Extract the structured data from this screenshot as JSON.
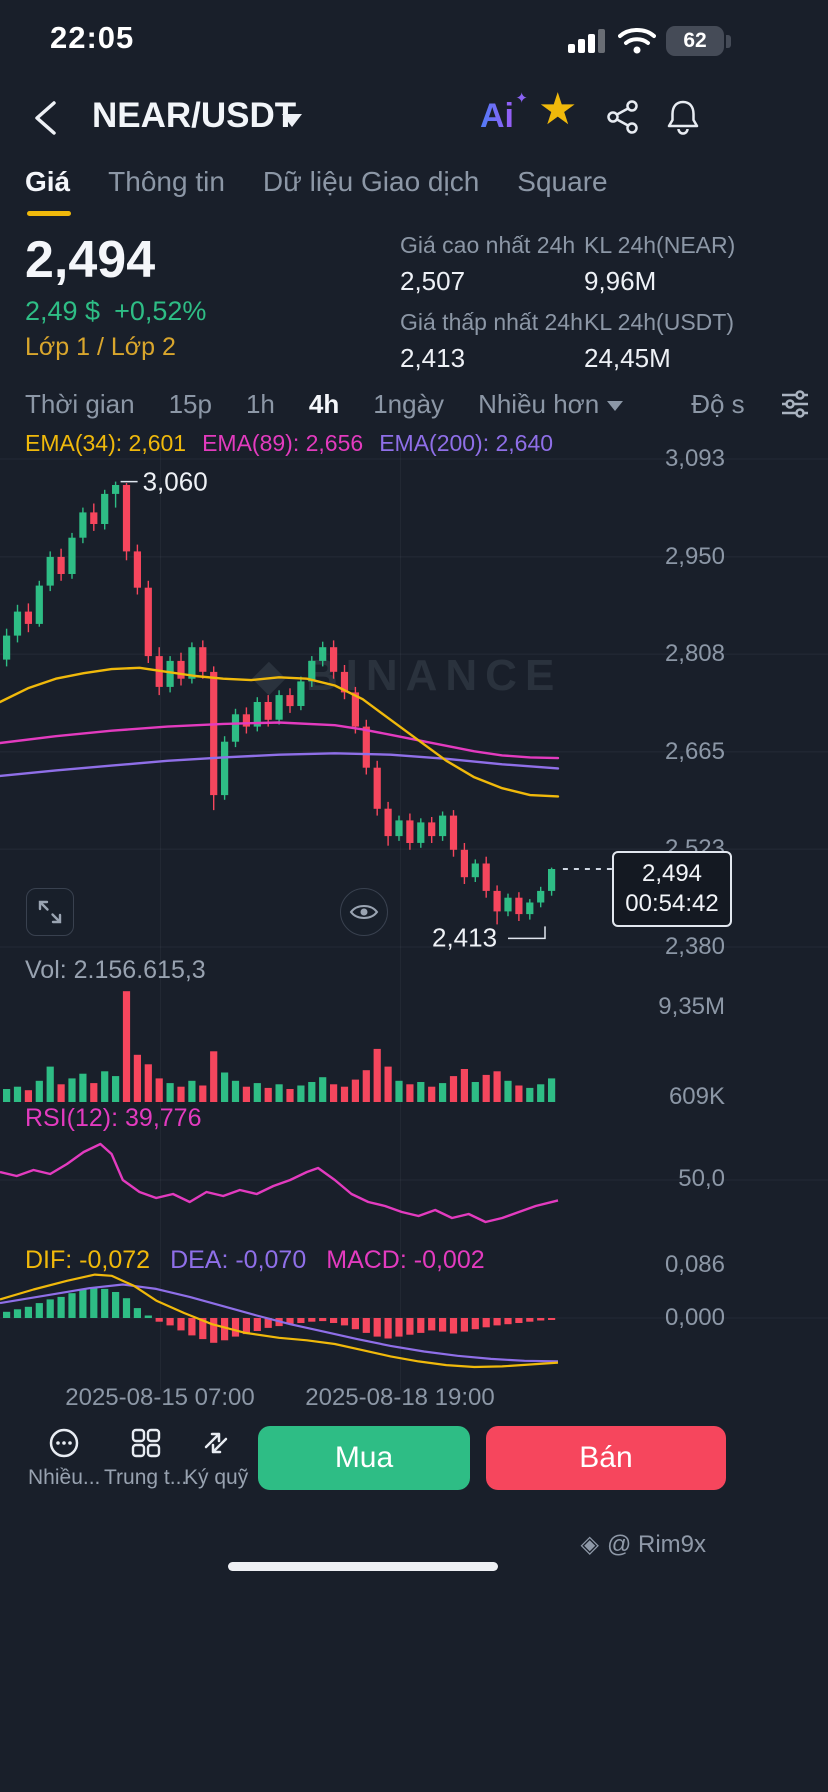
{
  "status_bar": {
    "time": "22:05",
    "battery": "62"
  },
  "header": {
    "title": "NEAR/USDT",
    "ai_label": "Ai"
  },
  "icons": {
    "star": "★",
    "sparkle": "✦",
    "logo": "◈",
    "diamond": "◆"
  },
  "tabs": [
    {
      "label": "Giá",
      "active": true
    },
    {
      "label": "Thông tin",
      "active": false
    },
    {
      "label": "Dữ liệu Giao dịch",
      "active": false
    },
    {
      "label": "Square",
      "active": false
    }
  ],
  "ticker": {
    "price": "2,494",
    "fiat": "2,49 $",
    "change": "+0,52%",
    "layers": "Lớp 1 / Lớp 2",
    "stats": [
      {
        "label": "Giá cao nhất 24h",
        "value": "2,507"
      },
      {
        "label": "KL 24h(NEAR)",
        "value": "9,96M"
      },
      {
        "label": "Giá thấp nhất 24h",
        "value": "2,413"
      },
      {
        "label": "KL 24h(USDT)",
        "value": "24,45M"
      }
    ]
  },
  "timeframe_bar": {
    "items": [
      {
        "label": "Thời gian",
        "active": false
      },
      {
        "label": "15p",
        "active": false
      },
      {
        "label": "1h",
        "active": false
      },
      {
        "label": "4h",
        "active": true
      },
      {
        "label": "1ngày",
        "active": false
      }
    ],
    "more": "Nhiều hơn",
    "depth": "Độ s"
  },
  "legends": {
    "ema34": "EMA(34): 2,601",
    "ema89": "EMA(89): 2,656",
    "ema200": "EMA(200): 2,640",
    "vol": "Vol: 2.156.615,3",
    "rsi": "RSI(12): 39,776",
    "dif": "DIF: -0,072",
    "dea": "DEA: -0,070",
    "macd": "MACD: -0,002"
  },
  "annotations": {
    "high": "3,060",
    "low": "2,413",
    "last_price": "2,494",
    "countdown": "00:54:42",
    "watermark": "BINANCE",
    "credit": "@ Rim9x"
  },
  "axis": {
    "price_labels": [
      "3,093",
      "2,950",
      "2,808",
      "2,665",
      "2,523",
      "2,380"
    ],
    "volume_labels": [
      "9,35M",
      "609K"
    ],
    "rsi_label": "50,0",
    "macd_labels": [
      "0,086",
      "0,000"
    ],
    "time_labels": [
      "2025-08-15 07:00",
      "2025-08-18 19:00"
    ]
  },
  "actions": {
    "more": "Nhiều...",
    "hub": "Trung t...",
    "margin": "Ký quỹ",
    "buy": "Mua",
    "sell": "Bán"
  },
  "colors": {
    "bg": "#191f2a",
    "up": "#2ebd85",
    "down": "#f6465d",
    "yellow": "#f0b90b",
    "magenta": "#e33bbf",
    "purple": "#8f6fe8",
    "grid": "rgba(140,152,170,0.10)",
    "text": "#eaecef",
    "text_dim": "#8c97a6"
  },
  "chart_data": {
    "type": "candlestick",
    "symbol": "NEAR/USDT",
    "interval": "4h",
    "price_axis": {
      "min": 2380,
      "max": 3093,
      "gridlines": [
        3093,
        2950,
        2808,
        2665,
        2523,
        2380
      ]
    },
    "candles": [
      [
        2800,
        2845,
        2790,
        2835
      ],
      [
        2835,
        2880,
        2825,
        2870
      ],
      [
        2870,
        2882,
        2840,
        2852
      ],
      [
        2852,
        2915,
        2848,
        2908
      ],
      [
        2908,
        2958,
        2900,
        2950
      ],
      [
        2950,
        2962,
        2915,
        2925
      ],
      [
        2925,
        2985,
        2918,
        2978
      ],
      [
        2978,
        3022,
        2970,
        3015
      ],
      [
        3015,
        3028,
        2988,
        2998
      ],
      [
        2998,
        3048,
        2990,
        3042
      ],
      [
        3042,
        3060,
        3022,
        3055
      ],
      [
        3055,
        3058,
        2945,
        2958
      ],
      [
        2958,
        2968,
        2895,
        2905
      ],
      [
        2905,
        2915,
        2795,
        2805
      ],
      [
        2805,
        2818,
        2748,
        2760
      ],
      [
        2760,
        2805,
        2752,
        2798
      ],
      [
        2798,
        2810,
        2762,
        2772
      ],
      [
        2772,
        2825,
        2765,
        2818
      ],
      [
        2818,
        2828,
        2772,
        2782
      ],
      [
        2782,
        2790,
        2580,
        2602
      ],
      [
        2602,
        2688,
        2595,
        2680
      ],
      [
        2680,
        2728,
        2672,
        2720
      ],
      [
        2720,
        2730,
        2692,
        2702
      ],
      [
        2702,
        2745,
        2695,
        2738
      ],
      [
        2738,
        2748,
        2702,
        2712
      ],
      [
        2712,
        2755,
        2705,
        2748
      ],
      [
        2748,
        2758,
        2722,
        2732
      ],
      [
        2732,
        2775,
        2726,
        2768
      ],
      [
        2768,
        2805,
        2760,
        2798
      ],
      [
        2798,
        2826,
        2790,
        2818
      ],
      [
        2818,
        2828,
        2772,
        2782
      ],
      [
        2782,
        2792,
        2742,
        2752
      ],
      [
        2752,
        2760,
        2692,
        2702
      ],
      [
        2702,
        2712,
        2632,
        2642
      ],
      [
        2642,
        2652,
        2572,
        2582
      ],
      [
        2582,
        2592,
        2528,
        2542
      ],
      [
        2542,
        2572,
        2535,
        2565
      ],
      [
        2565,
        2575,
        2522,
        2532
      ],
      [
        2532,
        2568,
        2525,
        2562
      ],
      [
        2562,
        2570,
        2532,
        2542
      ],
      [
        2542,
        2578,
        2535,
        2572
      ],
      [
        2572,
        2580,
        2512,
        2522
      ],
      [
        2522,
        2532,
        2472,
        2482
      ],
      [
        2482,
        2508,
        2475,
        2502
      ],
      [
        2502,
        2512,
        2452,
        2462
      ],
      [
        2462,
        2470,
        2413,
        2432
      ],
      [
        2432,
        2458,
        2425,
        2452
      ],
      [
        2452,
        2460,
        2418,
        2428
      ],
      [
        2428,
        2450,
        2420,
        2445
      ],
      [
        2445,
        2468,
        2438,
        2462
      ],
      [
        2462,
        2496,
        2455,
        2494
      ]
    ],
    "volumes": [
      1.1,
      1.3,
      1.0,
      1.8,
      3.0,
      1.5,
      2.0,
      2.4,
      1.6,
      2.6,
      2.2,
      9.4,
      4.0,
      3.2,
      2.0,
      1.6,
      1.3,
      1.8,
      1.4,
      4.3,
      2.5,
      1.8,
      1.3,
      1.6,
      1.2,
      1.5,
      1.1,
      1.4,
      1.7,
      2.1,
      1.5,
      1.3,
      1.9,
      2.7,
      4.5,
      3.0,
      1.8,
      1.5,
      1.7,
      1.3,
      1.6,
      2.2,
      2.8,
      1.7,
      2.3,
      2.6,
      1.8,
      1.4,
      1.2,
      1.5,
      2.0
    ],
    "ema34": [
      [
        0,
        2738
      ],
      [
        0.05,
        2758
      ],
      [
        0.1,
        2772
      ],
      [
        0.15,
        2780
      ],
      [
        0.2,
        2786
      ],
      [
        0.25,
        2788
      ],
      [
        0.3,
        2782
      ],
      [
        0.35,
        2776
      ],
      [
        0.4,
        2772
      ],
      [
        0.45,
        2770
      ],
      [
        0.5,
        2774
      ],
      [
        0.55,
        2772
      ],
      [
        0.6,
        2762
      ],
      [
        0.65,
        2742
      ],
      [
        0.7,
        2712
      ],
      [
        0.75,
        2682
      ],
      [
        0.8,
        2652
      ],
      [
        0.85,
        2628
      ],
      [
        0.9,
        2612
      ],
      [
        0.95,
        2602
      ],
      [
        1,
        2600
      ]
    ],
    "ema89": [
      [
        0,
        2678
      ],
      [
        0.1,
        2688
      ],
      [
        0.2,
        2696
      ],
      [
        0.3,
        2702
      ],
      [
        0.4,
        2706
      ],
      [
        0.5,
        2708
      ],
      [
        0.6,
        2704
      ],
      [
        0.65,
        2698
      ],
      [
        0.7,
        2690
      ],
      [
        0.75,
        2682
      ],
      [
        0.8,
        2674
      ],
      [
        0.85,
        2666
      ],
      [
        0.9,
        2660
      ],
      [
        0.95,
        2657
      ],
      [
        1,
        2656
      ]
    ],
    "ema200": [
      [
        0,
        2630
      ],
      [
        0.1,
        2638
      ],
      [
        0.2,
        2645
      ],
      [
        0.3,
        2652
      ],
      [
        0.4,
        2657
      ],
      [
        0.5,
        2661
      ],
      [
        0.6,
        2663
      ],
      [
        0.7,
        2661
      ],
      [
        0.8,
        2655
      ],
      [
        0.9,
        2647
      ],
      [
        1,
        2641
      ]
    ],
    "rsi": [
      [
        0,
        54
      ],
      [
        0.03,
        52
      ],
      [
        0.06,
        55
      ],
      [
        0.09,
        53
      ],
      [
        0.12,
        58
      ],
      [
        0.15,
        64
      ],
      [
        0.18,
        68
      ],
      [
        0.2,
        63
      ],
      [
        0.22,
        50
      ],
      [
        0.25,
        44
      ],
      [
        0.28,
        41
      ],
      [
        0.31,
        43
      ],
      [
        0.34,
        39
      ],
      [
        0.37,
        44
      ],
      [
        0.4,
        42
      ],
      [
        0.43,
        45
      ],
      [
        0.46,
        43
      ],
      [
        0.49,
        47
      ],
      [
        0.52,
        50
      ],
      [
        0.55,
        54
      ],
      [
        0.57,
        56
      ],
      [
        0.6,
        50
      ],
      [
        0.63,
        43
      ],
      [
        0.66,
        39
      ],
      [
        0.69,
        37
      ],
      [
        0.72,
        34
      ],
      [
        0.75,
        32
      ],
      [
        0.78,
        35
      ],
      [
        0.81,
        31
      ],
      [
        0.84,
        33
      ],
      [
        0.87,
        29
      ],
      [
        0.9,
        31
      ],
      [
        0.93,
        34
      ],
      [
        0.96,
        37
      ],
      [
        1,
        39.8
      ]
    ],
    "macd": {
      "hist": [
        0.01,
        0.014,
        0.018,
        0.024,
        0.03,
        0.034,
        0.04,
        0.046,
        0.05,
        0.047,
        0.042,
        0.032,
        0.016,
        0.004,
        -0.006,
        -0.012,
        -0.02,
        -0.028,
        -0.034,
        -0.04,
        -0.036,
        -0.03,
        -0.026,
        -0.021,
        -0.016,
        -0.013,
        -0.01,
        -0.008,
        -0.006,
        -0.005,
        -0.008,
        -0.012,
        -0.018,
        -0.024,
        -0.03,
        -0.033,
        -0.03,
        -0.027,
        -0.024,
        -0.02,
        -0.022,
        -0.025,
        -0.022,
        -0.018,
        -0.015,
        -0.012,
        -0.01,
        -0.008,
        -0.006,
        -0.004,
        -0.002
      ],
      "dif": [
        [
          0,
          0.03
        ],
        [
          0.06,
          0.046
        ],
        [
          0.12,
          0.06
        ],
        [
          0.17,
          0.07
        ],
        [
          0.2,
          0.068
        ],
        [
          0.24,
          0.052
        ],
        [
          0.28,
          0.028
        ],
        [
          0.33,
          0.008
        ],
        [
          0.38,
          -0.01
        ],
        [
          0.44,
          -0.024
        ],
        [
          0.5,
          -0.032
        ],
        [
          0.55,
          -0.036
        ],
        [
          0.6,
          -0.042
        ],
        [
          0.65,
          -0.052
        ],
        [
          0.7,
          -0.062
        ],
        [
          0.75,
          -0.07
        ],
        [
          0.8,
          -0.076
        ],
        [
          0.85,
          -0.079
        ],
        [
          0.9,
          -0.078
        ],
        [
          0.95,
          -0.075
        ],
        [
          1,
          -0.072
        ]
      ],
      "dea": [
        [
          0,
          0.024
        ],
        [
          0.08,
          0.036
        ],
        [
          0.16,
          0.048
        ],
        [
          0.22,
          0.054
        ],
        [
          0.28,
          0.047
        ],
        [
          0.34,
          0.034
        ],
        [
          0.4,
          0.019
        ],
        [
          0.46,
          0.004
        ],
        [
          0.52,
          -0.01
        ],
        [
          0.58,
          -0.022
        ],
        [
          0.64,
          -0.034
        ],
        [
          0.7,
          -0.045
        ],
        [
          0.76,
          -0.054
        ],
        [
          0.82,
          -0.061
        ],
        [
          0.88,
          -0.066
        ],
        [
          0.94,
          -0.069
        ],
        [
          1,
          -0.07
        ]
      ]
    },
    "markers": {
      "high_index": 10,
      "high_price": 3060,
      "low_index": 45,
      "low_price": 2413,
      "last_close": 2494
    }
  }
}
